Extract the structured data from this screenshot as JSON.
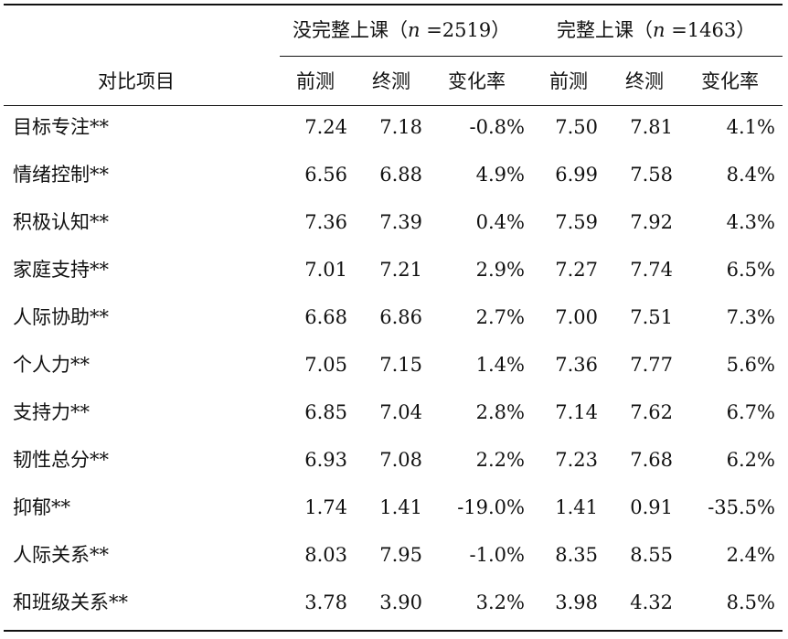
{
  "table": {
    "item_header": "对比项目",
    "groups": [
      {
        "label_prefix": "没完整上课（",
        "n_symbol": "n",
        "label_suffix": " =2519）"
      },
      {
        "label_prefix": "完整上课（",
        "n_symbol": "n",
        "label_suffix": " =1463）"
      }
    ],
    "sub_headers": [
      "前测",
      "终测",
      "变化率",
      "前测",
      "终测",
      "变化率"
    ],
    "rows": [
      {
        "label": "目标专注**",
        "values": [
          "7.24",
          "7.18",
          "-0.8%",
          "7.50",
          "7.81",
          "4.1%"
        ]
      },
      {
        "label": "情绪控制**",
        "values": [
          "6.56",
          "6.88",
          "4.9%",
          "6.99",
          "7.58",
          "8.4%"
        ]
      },
      {
        "label": "积极认知**",
        "values": [
          "7.36",
          "7.39",
          "0.4%",
          "7.59",
          "7.92",
          "4.3%"
        ]
      },
      {
        "label": "家庭支持**",
        "values": [
          "7.01",
          "7.21",
          "2.9%",
          "7.27",
          "7.74",
          "6.5%"
        ]
      },
      {
        "label": "人际协助**",
        "values": [
          "6.68",
          "6.86",
          "2.7%",
          "7.00",
          "7.51",
          "7.3%"
        ]
      },
      {
        "label": "个人力**",
        "values": [
          "7.05",
          "7.15",
          "1.4%",
          "7.36",
          "7.77",
          "5.6%"
        ]
      },
      {
        "label": "支持力**",
        "values": [
          "6.85",
          "7.04",
          "2.8%",
          "7.14",
          "7.62",
          "6.7%"
        ]
      },
      {
        "label": "韧性总分**",
        "values": [
          "6.93",
          "7.08",
          "2.2%",
          "7.23",
          "7.68",
          "6.2%"
        ]
      },
      {
        "label": "抑郁**",
        "values": [
          "1.74",
          "1.41",
          "-19.0%",
          "1.41",
          "0.91",
          "-35.5%"
        ]
      },
      {
        "label": "人际关系**",
        "values": [
          "8.03",
          "7.95",
          "-1.0%",
          "8.35",
          "8.55",
          "2.4%"
        ]
      },
      {
        "label": "和班级关系**",
        "values": [
          "3.78",
          "3.90",
          "3.2%",
          "3.98",
          "4.32",
          "8.5%"
        ]
      }
    ]
  }
}
